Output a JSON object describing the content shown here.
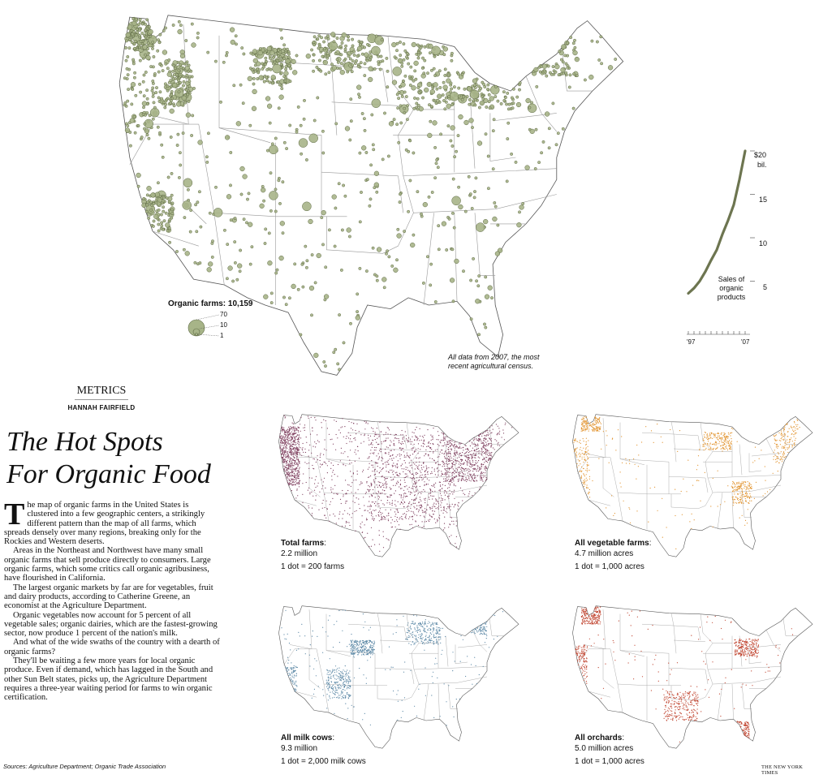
{
  "colors": {
    "organic": "#a7b488",
    "organic_stroke": "#5f6b45",
    "total": "#7d3c5c",
    "vegetable": "#e1922c",
    "milk": "#5a87a5",
    "orchard": "#c0432e",
    "sales_line": "#6d7550"
  },
  "main_map": {
    "legend_title": "Organic farms: 10,159",
    "legend_values": [
      "70",
      "10",
      "1"
    ],
    "note_line1": "All data from 2007, the most",
    "note_line2": "recent agricultural census."
  },
  "sales_chart": {
    "type": "line",
    "label_line1": "Sales of",
    "label_line2": "organic",
    "label_line3": "products",
    "y_ticks": [
      "$20",
      "15",
      "10",
      "5"
    ],
    "y_unit": "bil.",
    "x_start_label": "'97",
    "x_end_label": "'07",
    "chart_data": {
      "type": "line",
      "x": [
        1997,
        1998,
        1999,
        2000,
        2001,
        2002,
        2003,
        2004,
        2005,
        2006,
        2007
      ],
      "values": [
        3.6,
        4.2,
        5.0,
        6.1,
        7.4,
        8.6,
        10.4,
        12.0,
        13.8,
        16.7,
        20.0
      ],
      "ylim": [
        0,
        20
      ],
      "xlabel": "",
      "ylabel": ""
    }
  },
  "article": {
    "kicker": "METRICS",
    "byline": "HANNAH FAIRFIELD",
    "headline_line1": "The Hot Spots",
    "headline_line2": "For Organic Food",
    "dropcap": "T",
    "p1": "he map of organic farms in the United States is clustered into a few geographic centers, a strikingly different pattern than the map of all farms, which spreads densely over many regions, breaking only for the Rockies and Western deserts.",
    "p2": "Areas in the Northeast and Northwest have many small organic farms that sell produce directly to consumers. Large organic farms, which some critics call organic agribusiness, have flourished in California.",
    "p3": "The largest organic markets by far are for vegetables, fruit and dairy products,  according to Catherine Greene, an economist at the Agriculture Department.",
    "p4": "Organic vegetables now account for 5 percent of all vegetable sales; organic dairies, which are the fastest-growing sector, now produce 1 percent of the nation's milk.",
    "p5": "And what of the wide swaths of the country with a dearth of organic farms?",
    "p6": "They'll be waiting a few more years for local organic produce. Even if demand, which has lagged in the South and other Sun Belt states, picks up, the Agriculture Department requires a three-year waiting period for farms to win organic certification."
  },
  "small_maps": [
    {
      "title": "Total farms",
      "value": "2.2 million",
      "unit": "1 dot = 200 farms"
    },
    {
      "title": "All vegetable farms",
      "value": "4.7 million acres",
      "unit": "1 dot = 1,000 acres"
    },
    {
      "title": "All milk cows",
      "value": "9.3 million",
      "unit": "1 dot = 2,000 milk cows"
    },
    {
      "title": "All orchards",
      "value": "5.0 million acres",
      "unit": "1 dot = 1,000 acres"
    }
  ],
  "footer": {
    "sources": "Sources: Agriculture Department; Organic Trade Association",
    "credit": "THE NEW YORK TIMES"
  }
}
